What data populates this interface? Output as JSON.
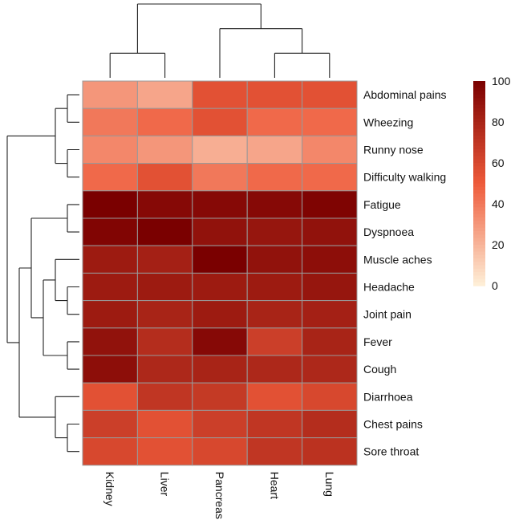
{
  "chart_data": {
    "type": "heatmap",
    "columns": [
      "Kidney",
      "Liver",
      "Pancreas",
      "Heart",
      "Lung"
    ],
    "rows": [
      "Abdominal pains",
      "Wheezing",
      "Runny nose",
      "Difficulty walking",
      "Fatigue",
      "Dyspnoea",
      "Muscle aches",
      "Headache",
      "Joint pain",
      "Fever",
      "Cough",
      "Diarrhoea",
      "Chest pains",
      "Sore throat"
    ],
    "values": [
      [
        30,
        25,
        55,
        55,
        55
      ],
      [
        40,
        45,
        55,
        45,
        45
      ],
      [
        35,
        30,
        22,
        25,
        35
      ],
      [
        45,
        55,
        40,
        45,
        45
      ],
      [
        100,
        95,
        95,
        95,
        98
      ],
      [
        97,
        100,
        90,
        88,
        90
      ],
      [
        85,
        82,
        100,
        90,
        92
      ],
      [
        85,
        85,
        85,
        85,
        88
      ],
      [
        85,
        80,
        85,
        80,
        82
      ],
      [
        90,
        75,
        95,
        65,
        80
      ],
      [
        92,
        78,
        80,
        78,
        78
      ],
      [
        55,
        70,
        68,
        55,
        60
      ],
      [
        65,
        55,
        65,
        70,
        75
      ],
      [
        60,
        55,
        60,
        70,
        72
      ]
    ],
    "colorbar": {
      "min": 0,
      "max": 100,
      "ticks": [
        0,
        20,
        40,
        60,
        80,
        100
      ],
      "color_low": "#fef0d9",
      "color_mid": "#ee5a3a",
      "color_high": "#7a0000"
    },
    "column_dendrogram": "((Kidney,Liver),(Pancreas,(Heart,Lung)))",
    "row_dendrogram": "(((Abdominal pains,Wheezing),(Runny nose,Difficulty walking)),(((Fatigue,Dyspnoea),((Muscle aches,(Headache,Joint pain)),(Fever,Cough))),(Diarrhoea,(Chest pains,Sore throat))))",
    "cell_border_color": "#999999"
  }
}
